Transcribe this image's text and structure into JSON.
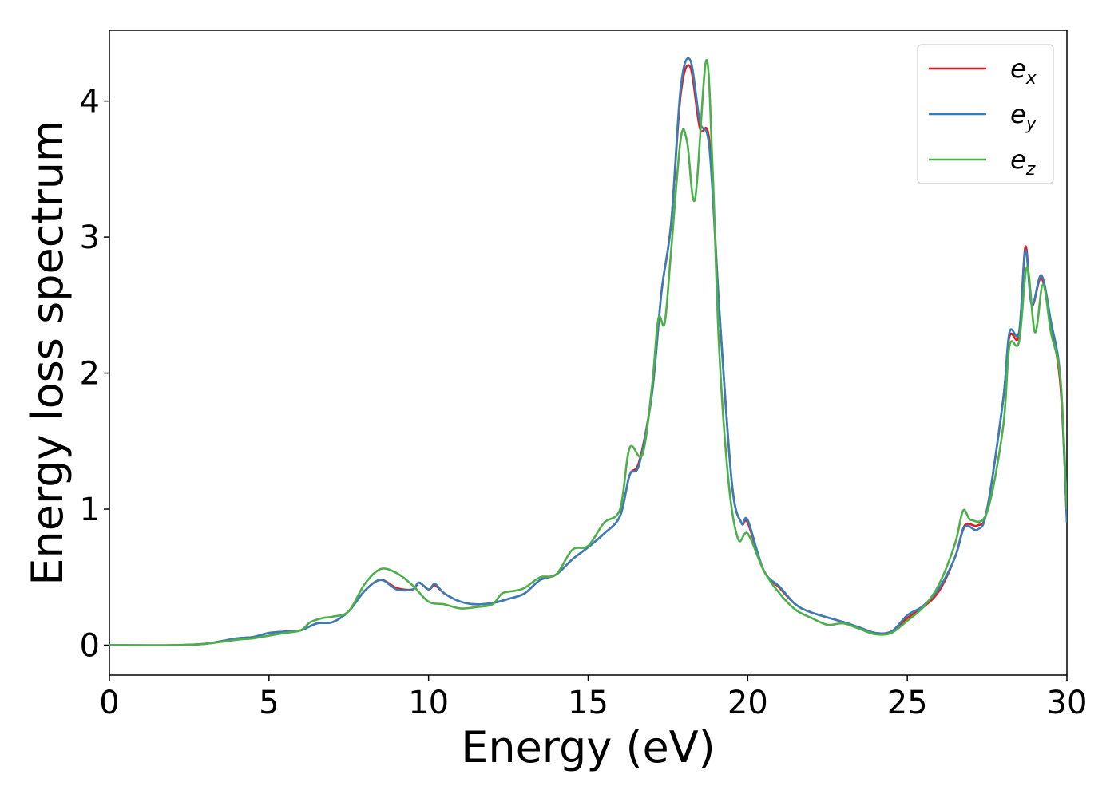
{
  "chart_data": {
    "type": "line",
    "title": "",
    "xlabel": "Energy (eV)",
    "ylabel": "Energy loss spectrum",
    "xlim": [
      0,
      30
    ],
    "ylim": [
      -0.22,
      4.52
    ],
    "xticks": [
      0,
      5,
      10,
      15,
      20,
      25,
      30
    ],
    "yticks": [
      0,
      1,
      2,
      3,
      4
    ],
    "grid": false,
    "legend_position": "top-right",
    "series": [
      {
        "name": "e_x",
        "label_base": "e",
        "label_sub": "x",
        "color": "#e41a1c",
        "points": [
          [
            0,
            0
          ],
          [
            2,
            0
          ],
          [
            3,
            0.01
          ],
          [
            4,
            0.05
          ],
          [
            4.5,
            0.06
          ],
          [
            5,
            0.09
          ],
          [
            5.5,
            0.1
          ],
          [
            6,
            0.11
          ],
          [
            6.5,
            0.16
          ],
          [
            7,
            0.17
          ],
          [
            7.5,
            0.25
          ],
          [
            8,
            0.4
          ],
          [
            8.5,
            0.48
          ],
          [
            9,
            0.42
          ],
          [
            9.5,
            0.41
          ],
          [
            9.7,
            0.46
          ],
          [
            10,
            0.41
          ],
          [
            10.2,
            0.44
          ],
          [
            10.5,
            0.38
          ],
          [
            11,
            0.32
          ],
          [
            11.5,
            0.3
          ],
          [
            12,
            0.31
          ],
          [
            12.5,
            0.34
          ],
          [
            13,
            0.38
          ],
          [
            13.5,
            0.48
          ],
          [
            14,
            0.52
          ],
          [
            14.5,
            0.63
          ],
          [
            15,
            0.72
          ],
          [
            15.5,
            0.82
          ],
          [
            16,
            0.95
          ],
          [
            16.3,
            1.25
          ],
          [
            16.6,
            1.35
          ],
          [
            17,
            1.85
          ],
          [
            17.3,
            2.6
          ],
          [
            17.6,
            3.1
          ],
          [
            17.9,
            4.05
          ],
          [
            18.2,
            4.25
          ],
          [
            18.5,
            3.8
          ],
          [
            18.8,
            3.7
          ],
          [
            19.1,
            2.5
          ],
          [
            19.5,
            1.2
          ],
          [
            19.8,
            0.9
          ],
          [
            20,
            0.9
          ],
          [
            20.5,
            0.55
          ],
          [
            21,
            0.42
          ],
          [
            21.5,
            0.3
          ],
          [
            22,
            0.24
          ],
          [
            23,
            0.17
          ],
          [
            23.5,
            0.13
          ],
          [
            24,
            0.09
          ],
          [
            24.5,
            0.1
          ],
          [
            25,
            0.2
          ],
          [
            25.5,
            0.28
          ],
          [
            26,
            0.4
          ],
          [
            26.5,
            0.65
          ],
          [
            26.8,
            0.88
          ],
          [
            27.2,
            0.88
          ],
          [
            27.5,
            1.0
          ],
          [
            28,
            1.8
          ],
          [
            28.2,
            2.27
          ],
          [
            28.5,
            2.28
          ],
          [
            28.7,
            2.93
          ],
          [
            28.9,
            2.5
          ],
          [
            29.2,
            2.7
          ],
          [
            29.5,
            2.35
          ],
          [
            29.8,
            1.9
          ],
          [
            30,
            0.92
          ]
        ]
      },
      {
        "name": "e_y",
        "label_base": "e",
        "label_sub": "y",
        "color": "#377eb8",
        "points": [
          [
            0,
            0
          ],
          [
            2,
            0
          ],
          [
            3,
            0.01
          ],
          [
            4,
            0.05
          ],
          [
            4.5,
            0.06
          ],
          [
            5,
            0.09
          ],
          [
            5.5,
            0.1
          ],
          [
            6,
            0.11
          ],
          [
            6.5,
            0.16
          ],
          [
            7,
            0.17
          ],
          [
            7.5,
            0.25
          ],
          [
            8,
            0.4
          ],
          [
            8.5,
            0.48
          ],
          [
            9,
            0.41
          ],
          [
            9.5,
            0.41
          ],
          [
            9.7,
            0.46
          ],
          [
            10,
            0.41
          ],
          [
            10.2,
            0.45
          ],
          [
            10.5,
            0.38
          ],
          [
            11,
            0.32
          ],
          [
            11.5,
            0.3
          ],
          [
            12,
            0.31
          ],
          [
            12.5,
            0.34
          ],
          [
            13,
            0.38
          ],
          [
            13.5,
            0.48
          ],
          [
            14,
            0.52
          ],
          [
            14.5,
            0.63
          ],
          [
            15,
            0.72
          ],
          [
            15.5,
            0.82
          ],
          [
            16,
            0.95
          ],
          [
            16.3,
            1.25
          ],
          [
            16.6,
            1.33
          ],
          [
            17,
            1.85
          ],
          [
            17.3,
            2.6
          ],
          [
            17.6,
            3.1
          ],
          [
            17.9,
            4.1
          ],
          [
            18.2,
            4.3
          ],
          [
            18.5,
            3.85
          ],
          [
            18.8,
            3.65
          ],
          [
            19.1,
            2.5
          ],
          [
            19.5,
            1.2
          ],
          [
            19.8,
            0.9
          ],
          [
            20,
            0.92
          ],
          [
            20.5,
            0.55
          ],
          [
            21,
            0.43
          ],
          [
            21.5,
            0.3
          ],
          [
            22,
            0.24
          ],
          [
            23,
            0.17
          ],
          [
            23.5,
            0.13
          ],
          [
            24,
            0.09
          ],
          [
            24.5,
            0.1
          ],
          [
            25,
            0.22
          ],
          [
            25.5,
            0.29
          ],
          [
            26,
            0.42
          ],
          [
            26.5,
            0.65
          ],
          [
            26.8,
            0.87
          ],
          [
            27.2,
            0.85
          ],
          [
            27.5,
            1.0
          ],
          [
            28,
            1.8
          ],
          [
            28.2,
            2.3
          ],
          [
            28.5,
            2.3
          ],
          [
            28.7,
            2.9
          ],
          [
            28.9,
            2.5
          ],
          [
            29.2,
            2.72
          ],
          [
            29.5,
            2.38
          ],
          [
            29.8,
            1.95
          ],
          [
            30,
            0.9
          ]
        ]
      },
      {
        "name": "e_z",
        "label_base": "e",
        "label_sub": "z",
        "color": "#4daf4a",
        "points": [
          [
            0,
            0
          ],
          [
            2,
            0
          ],
          [
            3,
            0.01
          ],
          [
            4,
            0.04
          ],
          [
            4.5,
            0.05
          ],
          [
            5,
            0.07
          ],
          [
            5.5,
            0.09
          ],
          [
            6,
            0.11
          ],
          [
            6.3,
            0.17
          ],
          [
            6.7,
            0.2
          ],
          [
            7,
            0.21
          ],
          [
            7.5,
            0.25
          ],
          [
            8,
            0.45
          ],
          [
            8.5,
            0.56
          ],
          [
            9,
            0.53
          ],
          [
            9.5,
            0.44
          ],
          [
            10,
            0.32
          ],
          [
            10.5,
            0.3
          ],
          [
            11,
            0.27
          ],
          [
            11.5,
            0.28
          ],
          [
            12,
            0.3
          ],
          [
            12.3,
            0.38
          ],
          [
            12.7,
            0.4
          ],
          [
            13,
            0.42
          ],
          [
            13.5,
            0.5
          ],
          [
            14,
            0.52
          ],
          [
            14.5,
            0.7
          ],
          [
            15,
            0.73
          ],
          [
            15.5,
            0.9
          ],
          [
            16,
            1.0
          ],
          [
            16.3,
            1.45
          ],
          [
            16.7,
            1.4
          ],
          [
            17,
            1.9
          ],
          [
            17.2,
            2.4
          ],
          [
            17.4,
            2.37
          ],
          [
            17.6,
            2.9
          ],
          [
            17.9,
            3.72
          ],
          [
            18.1,
            3.7
          ],
          [
            18.35,
            3.28
          ],
          [
            18.7,
            4.3
          ],
          [
            18.9,
            3.5
          ],
          [
            19.1,
            2.2
          ],
          [
            19.4,
            1.2
          ],
          [
            19.7,
            0.78
          ],
          [
            20,
            0.82
          ],
          [
            20.5,
            0.55
          ],
          [
            21,
            0.38
          ],
          [
            21.5,
            0.26
          ],
          [
            22,
            0.2
          ],
          [
            22.5,
            0.15
          ],
          [
            23,
            0.16
          ],
          [
            23.5,
            0.12
          ],
          [
            24,
            0.08
          ],
          [
            24.5,
            0.09
          ],
          [
            25,
            0.18
          ],
          [
            25.5,
            0.28
          ],
          [
            26,
            0.45
          ],
          [
            26.5,
            0.75
          ],
          [
            26.75,
            0.99
          ],
          [
            27,
            0.92
          ],
          [
            27.5,
            0.98
          ],
          [
            28,
            1.6
          ],
          [
            28.2,
            2.2
          ],
          [
            28.5,
            2.23
          ],
          [
            28.75,
            2.78
          ],
          [
            29,
            2.3
          ],
          [
            29.25,
            2.65
          ],
          [
            29.5,
            2.3
          ],
          [
            29.8,
            1.95
          ],
          [
            30,
            1.0
          ]
        ]
      }
    ]
  }
}
